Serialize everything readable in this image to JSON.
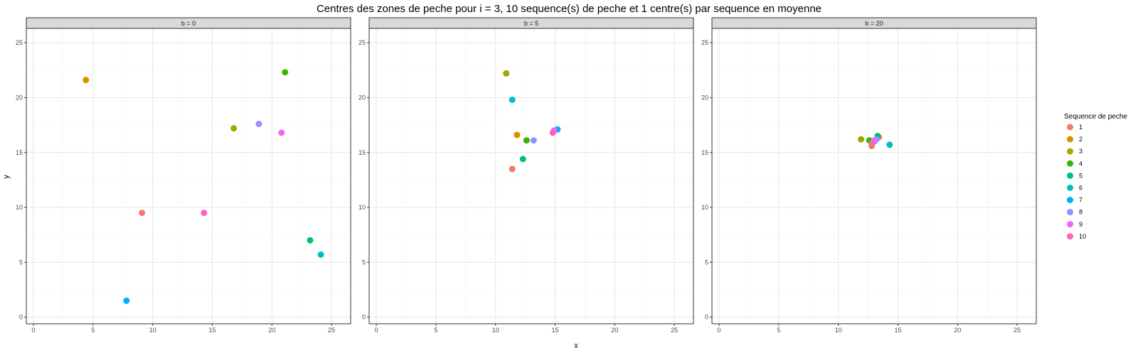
{
  "chart_data": {
    "type": "scatter",
    "title": "Centres des zones de peche pour i = 3, 10 sequence(s) de peche et 1 centre(s) par sequence en moyenne",
    "xlabel": "x",
    "ylabel": "y",
    "xlim": [
      -0.6,
      26.6
    ],
    "ylim": [
      -0.6,
      26.3
    ],
    "xticks": [
      0,
      5,
      10,
      15,
      20,
      25
    ],
    "yticks": [
      0,
      5,
      10,
      15,
      20,
      25
    ],
    "grid": true,
    "legend": {
      "title": "Sequence de peche",
      "placement": "right",
      "entries": [
        "1",
        "2",
        "3",
        "4",
        "5",
        "6",
        "7",
        "8",
        "9",
        "10"
      ],
      "colors": [
        "#F8766D",
        "#D89000",
        "#A3A500",
        "#39B600",
        "#00BF7D",
        "#00BFC4",
        "#00B0F6",
        "#9590FF",
        "#E76BF3",
        "#FF62BC"
      ]
    },
    "facets": [
      {
        "label": "b = 0",
        "points": [
          {
            "seq": "1",
            "x": 9.1,
            "y": 9.5
          },
          {
            "seq": "2",
            "x": 4.4,
            "y": 21.6
          },
          {
            "seq": "3",
            "x": 16.8,
            "y": 17.2
          },
          {
            "seq": "4",
            "x": 21.1,
            "y": 22.3
          },
          {
            "seq": "5",
            "x": 23.2,
            "y": 7.0
          },
          {
            "seq": "6",
            "x": 24.1,
            "y": 5.7
          },
          {
            "seq": "7",
            "x": 7.8,
            "y": 1.5
          },
          {
            "seq": "8",
            "x": 18.9,
            "y": 17.6
          },
          {
            "seq": "9",
            "x": 20.8,
            "y": 16.8
          },
          {
            "seq": "10",
            "x": 14.3,
            "y": 9.5
          }
        ]
      },
      {
        "label": "b = 5",
        "points": [
          {
            "seq": "1",
            "x": 11.4,
            "y": 13.5
          },
          {
            "seq": "2",
            "x": 11.8,
            "y": 16.6
          },
          {
            "seq": "3",
            "x": 10.9,
            "y": 22.2
          },
          {
            "seq": "4",
            "x": 12.6,
            "y": 16.1
          },
          {
            "seq": "5",
            "x": 12.3,
            "y": 14.4
          },
          {
            "seq": "6",
            "x": 11.4,
            "y": 19.8
          },
          {
            "seq": "7",
            "x": 15.2,
            "y": 17.1
          },
          {
            "seq": "8",
            "x": 13.2,
            "y": 16.1
          },
          {
            "seq": "9",
            "x": 14.9,
            "y": 17.0
          },
          {
            "seq": "10",
            "x": 14.8,
            "y": 16.8
          }
        ]
      },
      {
        "label": "b = 20",
        "points": [
          {
            "seq": "1",
            "x": 13.4,
            "y": 16.4
          },
          {
            "seq": "2",
            "x": 12.8,
            "y": 15.6
          },
          {
            "seq": "3",
            "x": 11.9,
            "y": 16.2
          },
          {
            "seq": "4",
            "x": 12.6,
            "y": 16.1
          },
          {
            "seq": "5",
            "x": 13.3,
            "y": 16.5
          },
          {
            "seq": "6",
            "x": 14.3,
            "y": 15.7
          },
          {
            "seq": "7",
            "x": 13.0,
            "y": 16.0
          },
          {
            "seq": "8",
            "x": 13.2,
            "y": 16.2
          },
          {
            "seq": "9",
            "x": 13.0,
            "y": 16.1
          },
          {
            "seq": "10",
            "x": 12.8,
            "y": 15.8
          }
        ]
      }
    ]
  }
}
